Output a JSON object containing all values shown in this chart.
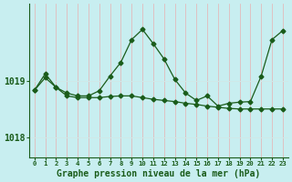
{
  "title": "Graphe pression niveau de la mer (hPa)",
  "bg_color": "#c8eef0",
  "line_color": "#1a5c1a",
  "grid_color_v": "#e8b0b0",
  "grid_color_h": "#d0e8e8",
  "xlim": [
    -0.5,
    23.5
  ],
  "ylim": [
    1017.65,
    1020.35
  ],
  "yticks": [
    1018,
    1019
  ],
  "series1_x": [
    0,
    1,
    2,
    3,
    4,
    5,
    6,
    7,
    8,
    9,
    10,
    11,
    12,
    13,
    14,
    15,
    16,
    17,
    18,
    19,
    20,
    21,
    22,
    23
  ],
  "series1_y": [
    1018.83,
    1019.12,
    1018.88,
    1018.78,
    1018.73,
    1018.73,
    1018.82,
    1019.08,
    1019.32,
    1019.72,
    1019.9,
    1019.65,
    1019.38,
    1019.02,
    1018.78,
    1018.65,
    1018.73,
    1018.55,
    1018.6,
    1018.62,
    1018.63,
    1019.08,
    1019.72,
    1019.88
  ],
  "series2_x": [
    0,
    1,
    2,
    3,
    4,
    5,
    6,
    7,
    8,
    9,
    10,
    11,
    12,
    13,
    14,
    15,
    16,
    17,
    18,
    19,
    20,
    21,
    22,
    23
  ],
  "series2_y": [
    1018.83,
    1019.05,
    1018.88,
    1018.73,
    1018.7,
    1018.7,
    1018.7,
    1018.72,
    1018.73,
    1018.73,
    1018.7,
    1018.67,
    1018.65,
    1018.63,
    1018.6,
    1018.58,
    1018.55,
    1018.53,
    1018.51,
    1018.5,
    1018.5,
    1018.5,
    1018.5,
    1018.5
  ],
  "marker": "D",
  "markersize": 2.5,
  "linewidth": 0.9,
  "ylabel_fontsize": 7,
  "title_fontsize": 7,
  "xtick_labels": [
    "0",
    "1",
    "2",
    "3",
    "4",
    "5",
    "6",
    "7",
    "8",
    "9",
    "10",
    "11",
    "12",
    "13",
    "14",
    "15",
    "16",
    "17",
    "18",
    "19",
    "20",
    "21",
    "22",
    "23"
  ]
}
